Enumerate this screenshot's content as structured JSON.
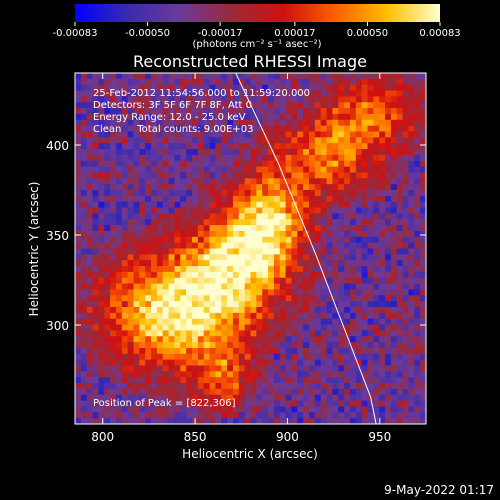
{
  "chart_data": {
    "type": "heatmap",
    "title": "Reconstructed RHESSI Image",
    "xlabel": "Heliocentric X (arcsec)",
    "ylabel": "Heliocentric Y (arcsec)",
    "xlim": [
      785,
      975
    ],
    "ylim": [
      245,
      440
    ],
    "x_ticks": [
      {
        "value": 800,
        "label": "800"
      },
      {
        "value": 850,
        "label": "850"
      },
      {
        "value": 900,
        "label": "900"
      },
      {
        "value": 950,
        "label": "950"
      }
    ],
    "y_ticks": [
      {
        "value": 300,
        "label": "300"
      },
      {
        "value": 350,
        "label": "350"
      },
      {
        "value": 400,
        "label": "400"
      }
    ],
    "colorbar": {
      "min": -0.00083,
      "max": 0.00083,
      "unit_label": "(photons cm⁻² s⁻¹ asec⁻²)",
      "tick_labels": [
        "-0.00083",
        "-0.00050",
        "-0.00017",
        "0.00017",
        "0.00050",
        "0.00083"
      ],
      "colors": [
        "#0000ff",
        "#3a2ab0",
        "#6a3a9a",
        "#9a2a3a",
        "#d01010",
        "#ff6000",
        "#ffc000",
        "#ffffd0"
      ]
    },
    "annotations": {
      "time_range": "25-Feb-2012 11:54:56.000 to 11:59:20.000",
      "detectors": "Detectors: 3F 5F 6F 7F 8F, Att 0",
      "energy_range": "Energy Range: 12.0 - 25.0 keV",
      "method_counts": "Clean     Total counts: 9.00E+03",
      "peak": "Position of Peak = [822,306]"
    },
    "peak_position": [
      822,
      306
    ],
    "sources": [
      {
        "x": 840,
        "y": 308,
        "sx": 26,
        "sy": 22,
        "amp": 1.0
      },
      {
        "x": 875,
        "y": 335,
        "sx": 18,
        "sy": 18,
        "amp": 0.85
      },
      {
        "x": 890,
        "y": 360,
        "sx": 14,
        "sy": 16,
        "amp": 0.75
      },
      {
        "x": 920,
        "y": 392,
        "sx": 20,
        "sy": 14,
        "amp": 0.6
      },
      {
        "x": 945,
        "y": 418,
        "sx": 18,
        "sy": 14,
        "amp": 0.55
      },
      {
        "x": 865,
        "y": 270,
        "sx": 10,
        "sy": 12,
        "amp": 0.45
      }
    ],
    "limb_arc": [
      [
        872,
        440
      ],
      [
        895,
        390
      ],
      [
        915,
        340
      ],
      [
        930,
        300
      ],
      [
        945,
        260
      ],
      [
        948,
        245
      ]
    ]
  },
  "footer": {
    "date": "9-May-2022 01:17"
  }
}
